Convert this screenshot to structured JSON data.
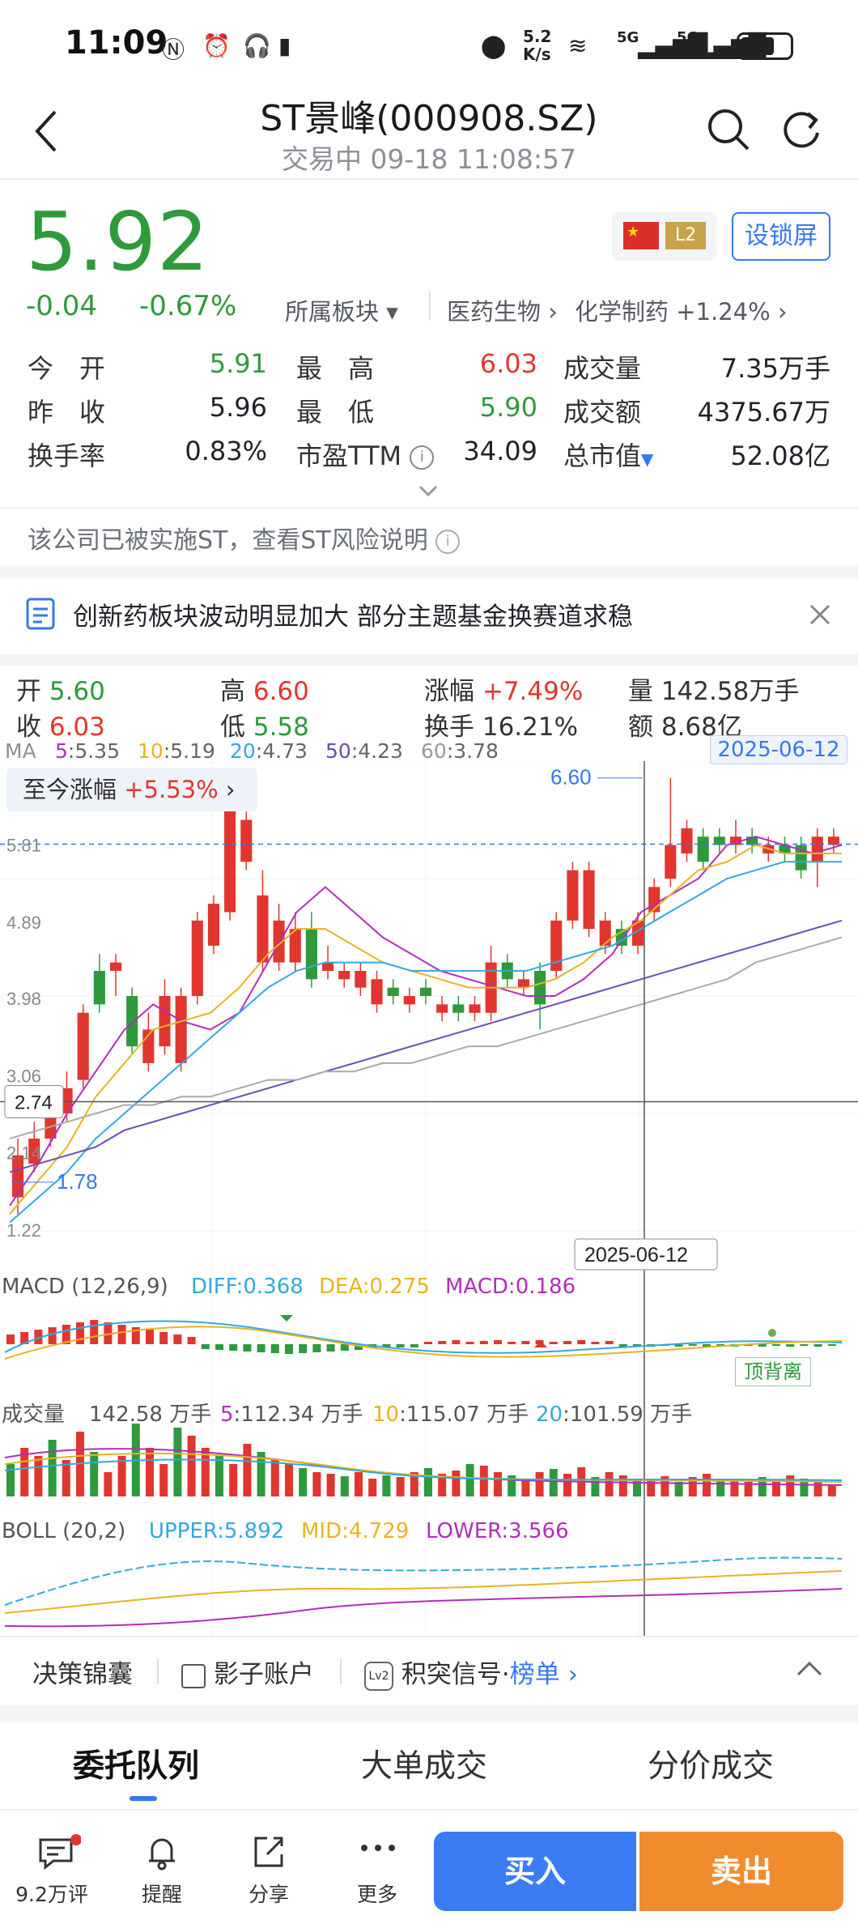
{
  "status_bar": {
    "time": "11:09",
    "net_speed_top": "5.2",
    "net_speed_unit": "K/s",
    "signal1": "5G",
    "signal2": "5G"
  },
  "header": {
    "title": "ST景峰(000908.SZ)",
    "subtitle": "交易中 09-18 11:08:57"
  },
  "quote": {
    "price": "5.92",
    "change": "-0.04",
    "change_pct": "-0.67%",
    "sector_label": "所属板块",
    "sector1": "医药生物",
    "sector2": "化学制药",
    "sector2_pct": "+1.24%",
    "level_badge": "L2",
    "lock_button": "设锁屏"
  },
  "stats": [
    {
      "label": "今　开",
      "value": "5.91",
      "color": "green"
    },
    {
      "label": "最　高",
      "value": "6.03",
      "color": "red"
    },
    {
      "label": "成交量",
      "value": "7.35万手",
      "color": "black"
    },
    {
      "label": "昨　收",
      "value": "5.96",
      "color": "black"
    },
    {
      "label": "最　低",
      "value": "5.90",
      "color": "green"
    },
    {
      "label": "成交额",
      "value": "4375.67万",
      "color": "black"
    },
    {
      "label": "换手率",
      "value": "0.83%",
      "color": "black"
    },
    {
      "label": "市盈TTM",
      "value": "34.09",
      "color": "black"
    },
    {
      "label": "总市值",
      "value": "52.08亿",
      "color": "black"
    }
  ],
  "notice": "该公司已被实施ST，查看ST风险说明",
  "news": "创新药板块波动明显加大 部分主题基金换赛道求稳",
  "kline_info": {
    "open_label": "开",
    "open": "5.60",
    "close_label": "收",
    "close": "6.03",
    "high_label": "高",
    "high": "6.60",
    "low_label": "低",
    "low": "5.58",
    "rise_label": "涨幅",
    "rise": "+7.49%",
    "turnover_label": "换手",
    "turnover": "16.21%",
    "vol_label": "量",
    "vol": "142.58万手",
    "amt_label": "额",
    "amt": "8.68亿"
  },
  "ma_line": {
    "label": "MA",
    "items": [
      {
        "key": "5",
        "value": ":5.35",
        "color": "#b02fb8"
      },
      {
        "key": "10",
        "value": ":5.19",
        "color": "#e8b320"
      },
      {
        "key": "20",
        "value": ":4.73",
        "color": "#31a9e0"
      },
      {
        "key": "50",
        "value": ":4.23",
        "color": "#6c4bb8"
      },
      {
        "key": "60",
        "value": ":3.78",
        "color": "#999999"
      }
    ],
    "date_tag": "2025-06-12"
  },
  "zhijin": {
    "label": "至今涨幅",
    "value": "+5.53%"
  },
  "chart_axis": {
    "y_labels": [
      "5.81",
      "4.89",
      "3.98",
      "3.06",
      "2.14",
      "1.22"
    ],
    "crosshair_price": "2.74",
    "peak_label": "6.60",
    "low_label": "1.78",
    "crosshair_date": "2025-06-12"
  },
  "macd": {
    "label": "MACD",
    "params": "(12,26,9)",
    "diff": "DIFF:0.368",
    "dea": "DEA:0.275",
    "macd": "MACD:0.186",
    "tag": "顶背离"
  },
  "volume": {
    "label": "成交量",
    "value": "142.58 万手",
    "ma5_key": "5",
    "ma5": ":112.34 万手",
    "ma10_key": "10",
    "ma10": ":115.07 万手",
    "ma20_key": "20",
    "ma20": ":101.59 万手"
  },
  "boll": {
    "label": "BOLL",
    "params": "(20,2)",
    "upper": "UPPER:5.892",
    "mid": "MID:4.729",
    "lower": "LOWER:3.566"
  },
  "tools": {
    "t1": "决策锦囊",
    "t2": "影子账户",
    "t3_prefix": "积突信号·",
    "t3_link": "榜单"
  },
  "tabs": [
    "委托队列",
    "大单成交",
    "分价成交"
  ],
  "bottom": {
    "comments": "9.2万评",
    "remind": "提醒",
    "share": "分享",
    "more": "更多",
    "buy": "买入",
    "sell": "卖出"
  }
}
